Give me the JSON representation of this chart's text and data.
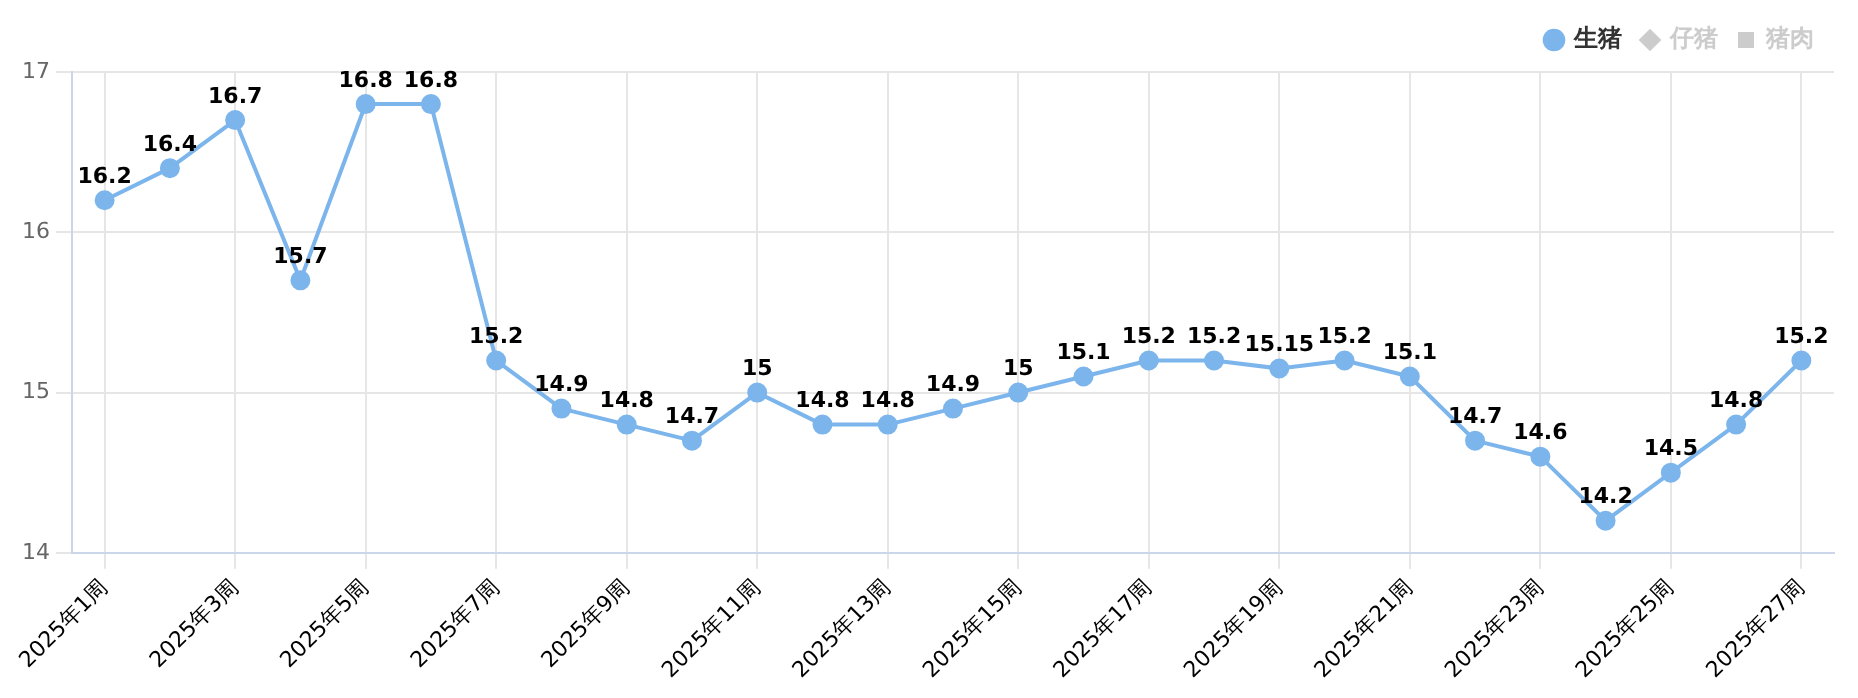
{
  "chart_data": {
    "type": "line",
    "categories": [
      "2025年1周",
      null,
      "2025年3周",
      null,
      "2025年5周",
      null,
      "2025年7周",
      null,
      "2025年9周",
      null,
      "2025年11周",
      null,
      "2025年13周",
      null,
      "2025年15周",
      null,
      "2025年17周",
      null,
      "2025年19周",
      null,
      "2025年21周",
      null,
      "2025年23周",
      null,
      "2025年25周",
      null,
      "2025年27周"
    ],
    "series": [
      {
        "name": "生猪",
        "color": "#7cb5ec",
        "marker": "circle",
        "values": [
          16.2,
          16.4,
          16.7,
          15.7,
          16.8,
          16.8,
          15.2,
          14.9,
          14.8,
          14.7,
          15,
          14.8,
          14.8,
          14.9,
          15,
          15.1,
          15.2,
          15.2,
          15.15,
          15.2,
          15.1,
          14.7,
          14.6,
          14.2,
          14.5,
          14.8,
          15.2
        ]
      },
      {
        "name": "仔猪",
        "color": "#cccccc",
        "marker": "diamond",
        "values": [
          null,
          null,
          null,
          null,
          null,
          null,
          null,
          null,
          null,
          null,
          null,
          null,
          null,
          null,
          null,
          null,
          null,
          null,
          null,
          null,
          null,
          null,
          null,
          null,
          null,
          null,
          null
        ]
      },
      {
        "name": "猪肉",
        "color": "#cccccc",
        "marker": "square",
        "values": [
          null,
          null,
          null,
          null,
          null,
          null,
          null,
          null,
          null,
          null,
          null,
          null,
          null,
          null,
          null,
          null,
          null,
          null,
          null,
          null,
          null,
          null,
          null,
          null,
          null,
          null,
          null
        ]
      }
    ],
    "ylim": [
      14,
      17
    ],
    "yticks": [
      14,
      15,
      16,
      17
    ],
    "grid": true,
    "legend": "top right",
    "data_labels": true,
    "line_style": "solid"
  }
}
